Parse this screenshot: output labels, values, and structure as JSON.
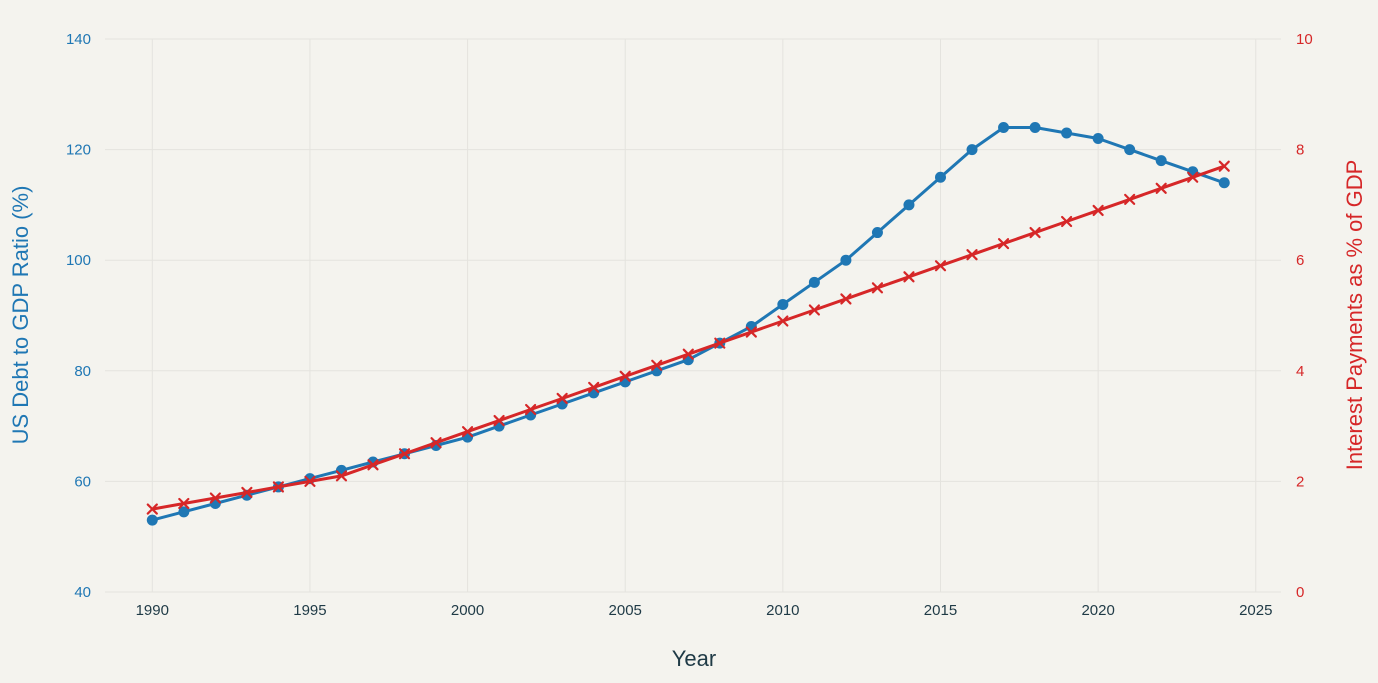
{
  "chart_data": {
    "type": "line",
    "xlabel": "Year",
    "ylabel_left": "US Debt to GDP Ratio (%)",
    "ylabel_right": "Interest Payments as % of GDP",
    "xlim": [
      1988.5,
      2025.8
    ],
    "xticks": [
      1990,
      1995,
      2000,
      2005,
      2010,
      2015,
      2020,
      2025
    ],
    "ylim_left": [
      40,
      140
    ],
    "yticks_left": [
      40,
      60,
      80,
      100,
      120,
      140
    ],
    "ylim_right": [
      0,
      10
    ],
    "yticks_right": [
      0,
      2,
      4,
      6,
      8,
      10
    ],
    "grid": true,
    "colors": {
      "left": "#1f77b4",
      "right": "#d62728",
      "background": "#f4f3ee",
      "text": "#1f3a46"
    },
    "x": [
      1990,
      1991,
      1992,
      1993,
      1994,
      1995,
      1996,
      1997,
      1998,
      1999,
      2000,
      2001,
      2002,
      2003,
      2004,
      2005,
      2006,
      2007,
      2008,
      2009,
      2010,
      2011,
      2012,
      2013,
      2014,
      2015,
      2016,
      2017,
      2018,
      2019,
      2020,
      2021,
      2022,
      2023,
      2024
    ],
    "series": [
      {
        "axis": "left",
        "marker": "circle",
        "values": [
          53,
          54.5,
          56,
          57.5,
          59,
          60.5,
          62,
          63.5,
          65,
          66.5,
          68,
          70,
          72,
          74,
          76,
          78,
          80,
          82,
          85,
          88,
          92,
          96,
          100,
          105,
          110,
          115,
          120,
          124,
          124,
          123,
          122,
          120,
          118,
          116,
          114
        ]
      },
      {
        "axis": "right",
        "marker": "x",
        "values": [
          1.5,
          1.6,
          1.7,
          1.8,
          1.9,
          2.0,
          2.1,
          2.3,
          2.5,
          2.7,
          2.9,
          3.1,
          3.3,
          3.5,
          3.7,
          3.9,
          4.1,
          4.3,
          4.5,
          4.7,
          4.9,
          5.1,
          5.3,
          5.5,
          5.7,
          5.9,
          6.1,
          6.3,
          6.5,
          6.7,
          6.9,
          7.1,
          7.3,
          7.5,
          7.7
        ]
      }
    ]
  }
}
